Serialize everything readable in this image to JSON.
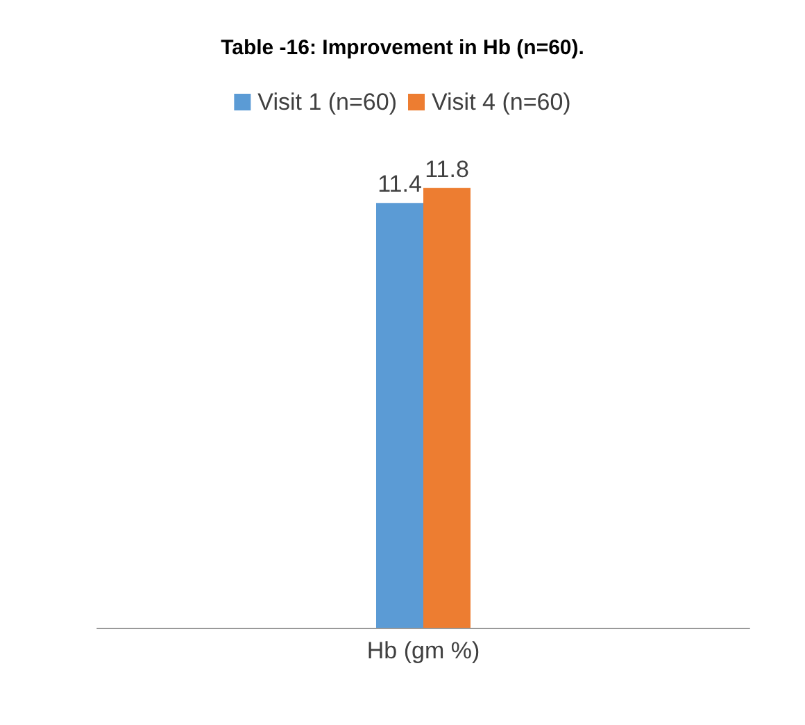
{
  "chart_data": {
    "type": "bar",
    "title": "Table -16: Improvement in Hb (n=60).",
    "categories": [
      "Hb (gm %)"
    ],
    "series": [
      {
        "name": "Visit 1 (n=60)",
        "color": "#5b9bd5",
        "values": [
          11.4
        ]
      },
      {
        "name": "Visit 4 (n=60)",
        "color": "#ed7d31",
        "values": [
          11.8
        ]
      }
    ],
    "data_labels": true,
    "legend": "top"
  }
}
